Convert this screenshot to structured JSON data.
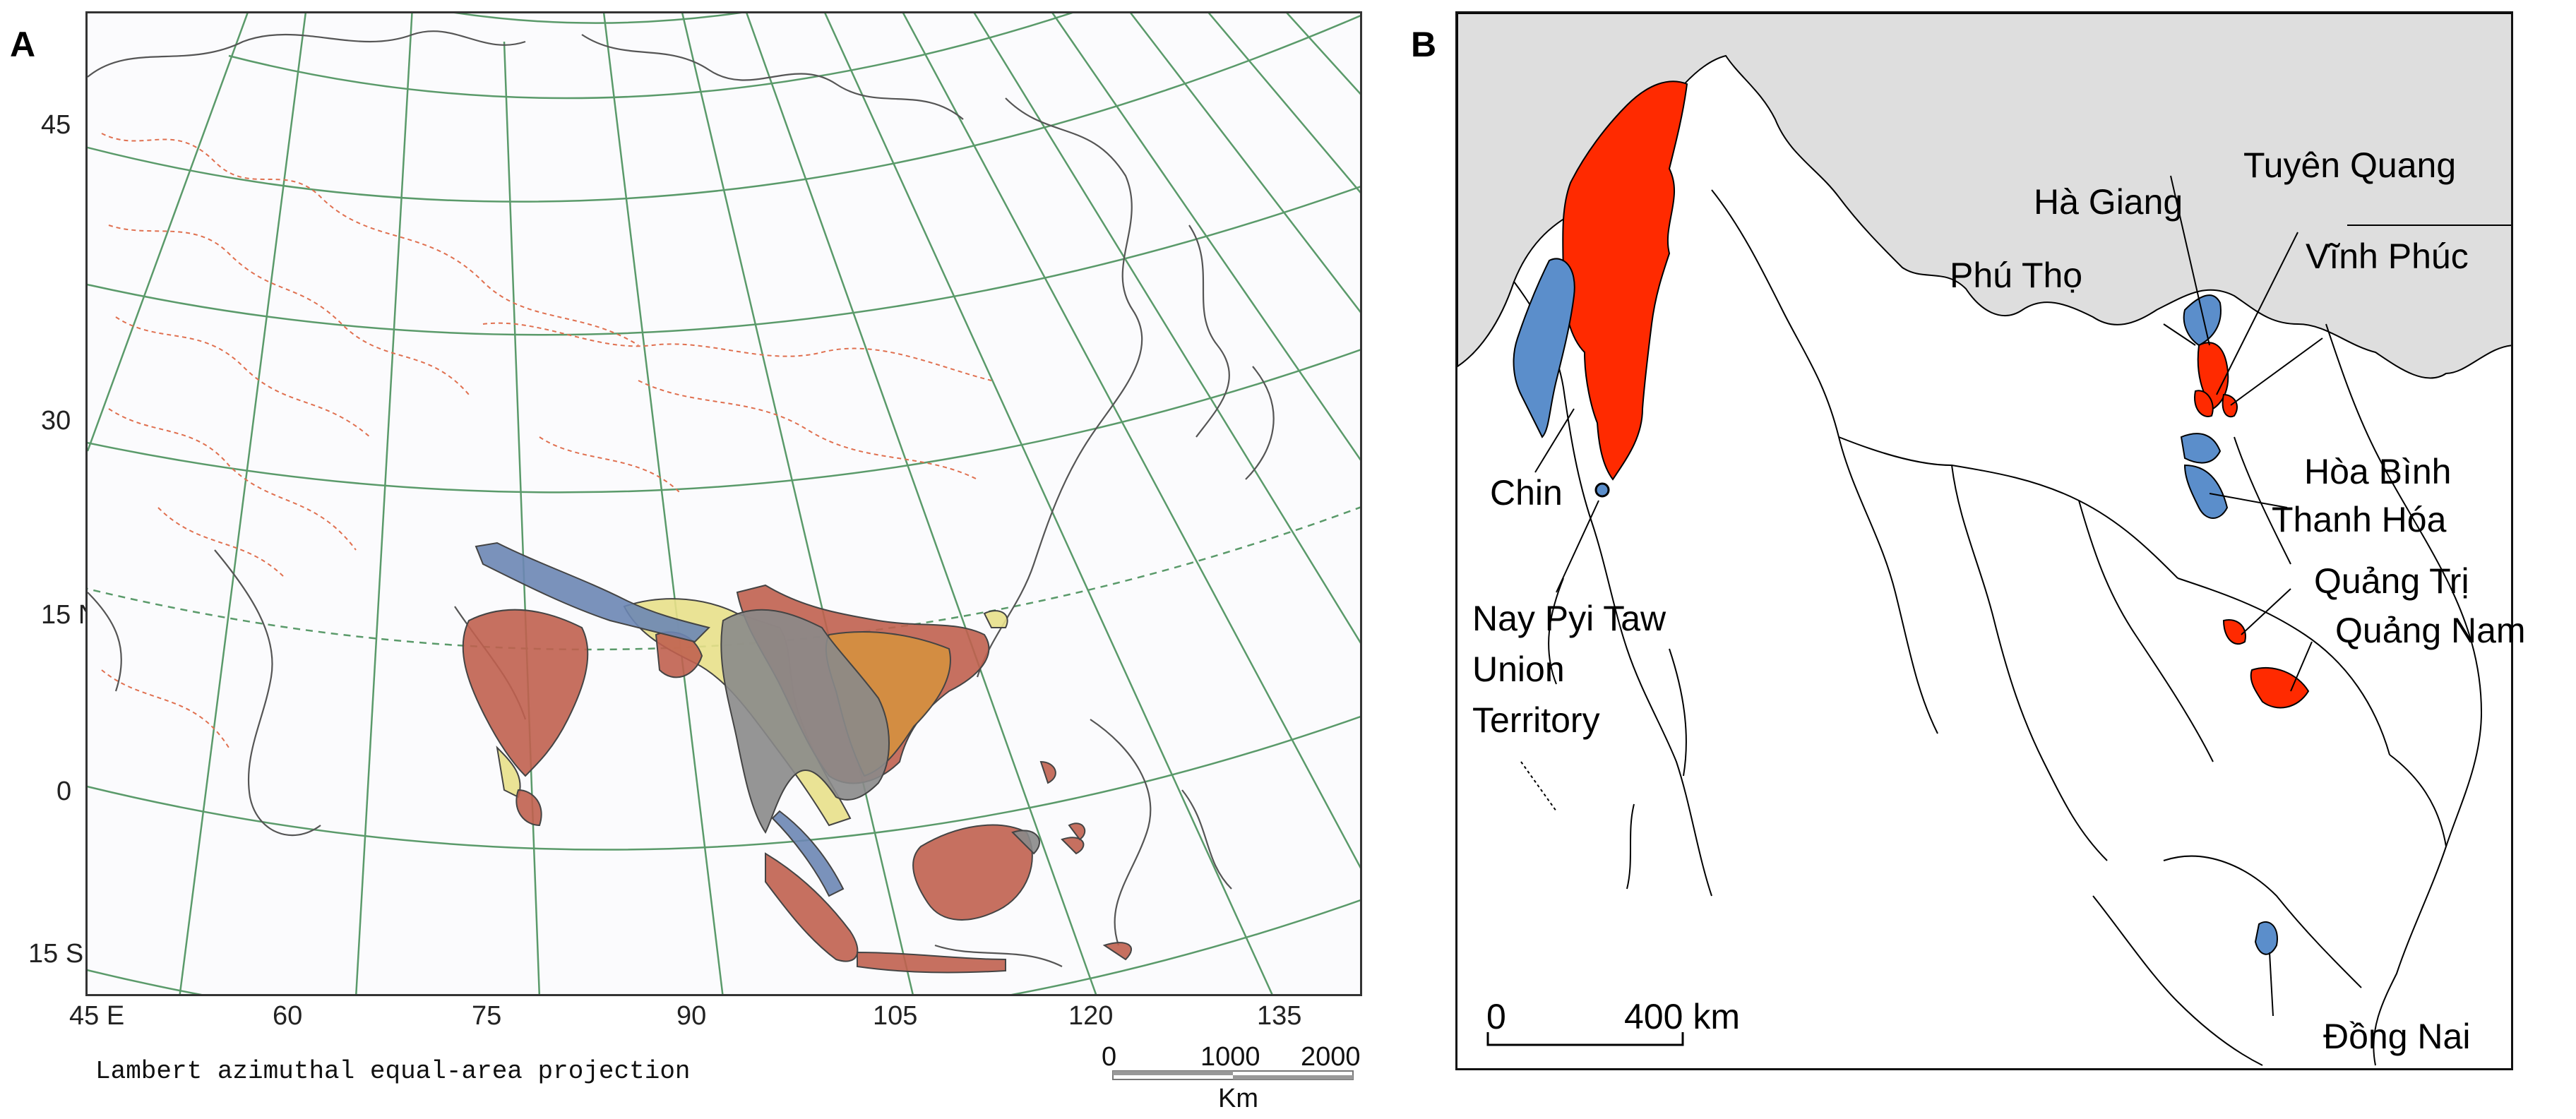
{
  "panel_a": {
    "letter": "A",
    "lat_labels": [
      "45",
      "30",
      "15 N",
      "0",
      "15 S"
    ],
    "lon_labels": [
      "45 E",
      "60",
      "75",
      "90",
      "105",
      "120",
      "135"
    ],
    "projection": "Lambert azimuthal equal-area projection",
    "scale": {
      "ticks": [
        "0",
        "1000",
        "2000"
      ],
      "unit": "Km"
    },
    "colors": {
      "graticule": "#5a9a6a",
      "coastline": "#555555",
      "borders": "#e07050",
      "range_red": "#c0604f",
      "range_orange": "#d4903f",
      "range_yellow": "#e8e08a",
      "range_blue": "#6c86b4",
      "range_gray": "#8a8a8a"
    }
  },
  "panel_b": {
    "letter": "B",
    "labels": {
      "chin": "Chin",
      "nay_pyi_taw": [
        "Nay Pyi Taw",
        "Union",
        "Territory"
      ],
      "ha_giang": "Hà Giang",
      "tuyen_quang": "Tuyên Quang",
      "phu_tho": "Phú Thọ",
      "vinh_phuc": "Vĩnh Phúc",
      "hoa_binh": "Hòa Bình",
      "thanh_hoa": "Thanh Hóa",
      "quang_tri": "Quảng Trị",
      "quang_nam": "Quảng Nam",
      "dong_nai": "Đồng Nai"
    },
    "scale": {
      "start": "0",
      "end": "400 km"
    },
    "colors": {
      "red": "#ff2a00",
      "blue": "#5b8ecb",
      "outside": "#dedede",
      "land": "#ffffff",
      "border": "#000000"
    }
  }
}
